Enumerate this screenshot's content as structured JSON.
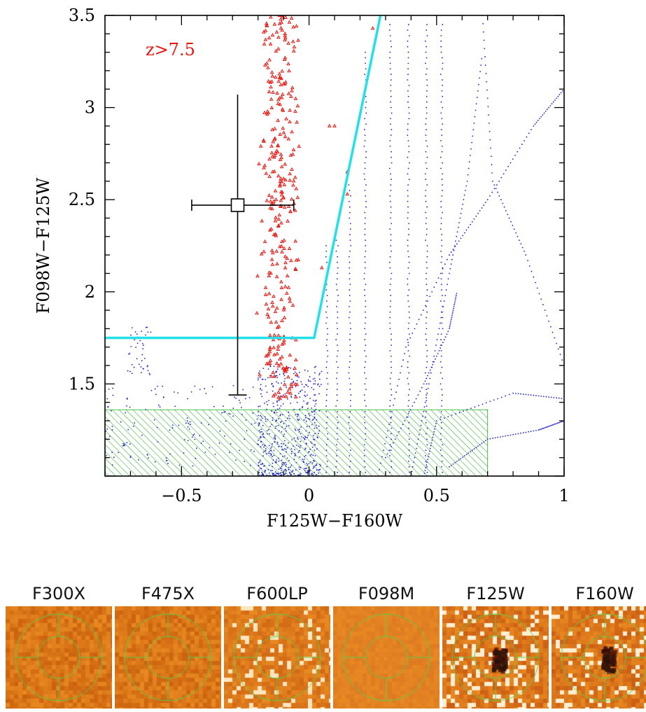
{
  "chart_data": {
    "type": "scatter",
    "title": "",
    "xlabel": "F125W−F160W",
    "ylabel": "F098W−F125W",
    "xlim": [
      -0.8,
      1.0
    ],
    "ylim": [
      1.0,
      3.5
    ],
    "xticks": [
      -0.5,
      0,
      0.5,
      1
    ],
    "xtick_labels": [
      "−0.5",
      "0",
      "0.5",
      "1"
    ],
    "yticks": [
      1.5,
      2,
      2.5,
      3,
      3.5
    ],
    "ytick_labels": [
      "1.5",
      "2",
      "2.5",
      "3",
      "3.5"
    ],
    "grid": false,
    "annotations": [
      {
        "text": "z>7.5",
        "x": -0.6,
        "y": 3.32,
        "color": "#e8140e"
      }
    ],
    "selection_boundary": {
      "color": "#22e0e8",
      "x": [
        -0.8,
        0.02,
        0.28
      ],
      "y": [
        1.75,
        1.75,
        3.5
      ]
    },
    "excluded_region": {
      "x": [
        -0.8,
        0.7
      ],
      "y": [
        1.0,
        1.36
      ],
      "color": "#22b422",
      "fill": "hatched"
    },
    "error_bar_point": {
      "x": -0.28,
      "y": 2.47,
      "xerr": [
        0.18,
        0.22
      ],
      "yerr": [
        0.6,
        1.03
      ],
      "color": "#000000"
    },
    "series": [
      {
        "marker": "triangle",
        "color": "#e8140e",
        "x_range": [
          -0.18,
          0.02
        ],
        "y_range": [
          1.42,
          3.5
        ]
      },
      {
        "marker": "dot",
        "color": "#1c1cd0",
        "x_range": [
          -0.8,
          1.0
        ],
        "y_range": [
          1.0,
          3.5
        ]
      }
    ]
  },
  "stamps": [
    {
      "label": "F300X",
      "texture": "faint"
    },
    {
      "label": "F475X",
      "texture": "faint"
    },
    {
      "label": "F600LP",
      "texture": "noisy"
    },
    {
      "label": "F098M",
      "texture": "smooth"
    },
    {
      "label": "F125W",
      "texture": "source"
    },
    {
      "label": "F160W",
      "texture": "source"
    }
  ],
  "colors": {
    "stamp_bg": "#e8891e",
    "aperture": "#5ad04a"
  }
}
